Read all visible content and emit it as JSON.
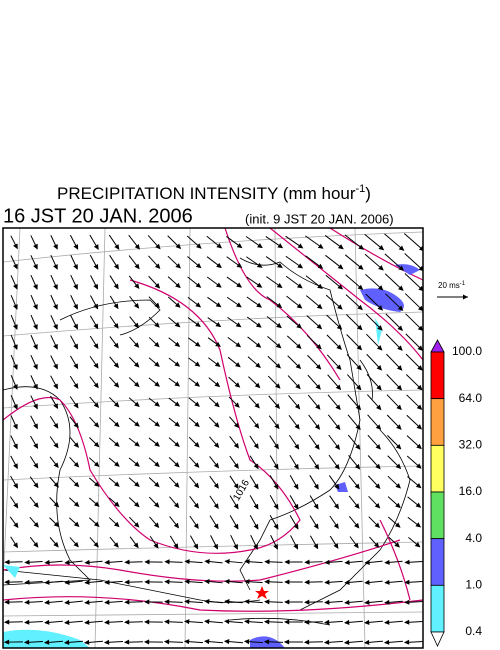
{
  "header": {
    "title": "PRECIPITATION INTENSITY (mm hour",
    "title_superscript": "-1",
    "title_close": ")",
    "valid_time": "16 JST 20 JAN. 2006",
    "init_time": "(init. 9 JST 20 JAN. 2006)"
  },
  "map": {
    "contour_label": "1016",
    "reference_vector": {
      "label": "20 ms",
      "superscript": "-1"
    }
  },
  "colorbar": {
    "labels": [
      "100.0",
      "64.0",
      "32.0",
      "16.0",
      "4.0",
      "1.0",
      "0.4"
    ],
    "colors": [
      "#a020f0",
      "#ff0000",
      "#ffa040",
      "#ffff60",
      "#60e060",
      "#6060ff",
      "#60f0ff",
      "#ffffff"
    ]
  }
}
